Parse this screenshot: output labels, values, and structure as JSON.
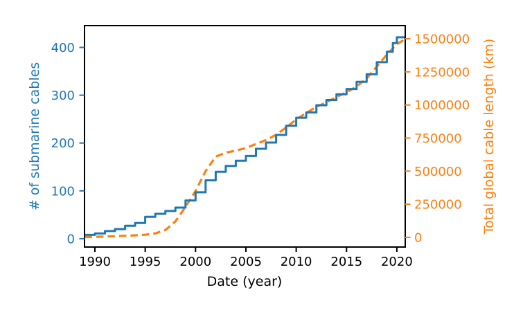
{
  "chart_data": {
    "type": "line",
    "title": "",
    "xlabel": "Date (year)",
    "grid": false,
    "legend": false,
    "background_color": "#ffffff",
    "spine_color": "#000000",
    "x_ticks": [
      1990,
      1995,
      2000,
      2005,
      2010,
      2015,
      2020
    ],
    "x_tick_color": "#000000",
    "xlim": [
      1988.97,
      2020.83
    ],
    "left_axis": {
      "label": "# of submarine cables",
      "color": "#1f77b4",
      "ticks": [
        0,
        100,
        200,
        300,
        400
      ],
      "lim": [
        -17.4,
        445.5
      ]
    },
    "right_axis": {
      "label": "Total global cable length (km)",
      "color": "#ff7f0e",
      "ticks": [
        0,
        250000,
        500000,
        750000,
        1000000,
        1250000,
        1500000
      ],
      "lim": [
        -73200,
        1599400
      ]
    },
    "series": [
      {
        "name": "# of submarine cables",
        "axis": "left",
        "style": "step-post",
        "line_dash": "solid",
        "color": "#1f77b4",
        "points": [
          [
            1989,
            8
          ],
          [
            1990,
            11
          ],
          [
            1991,
            16
          ],
          [
            1992,
            20
          ],
          [
            1993,
            27
          ],
          [
            1994,
            33
          ],
          [
            1995,
            46
          ],
          [
            1996,
            52
          ],
          [
            1997,
            58
          ],
          [
            1998,
            65
          ],
          [
            1999,
            80
          ],
          [
            2000,
            97
          ],
          [
            2001,
            122
          ],
          [
            2002,
            140
          ],
          [
            2003,
            152
          ],
          [
            2004,
            163
          ],
          [
            2005,
            173
          ],
          [
            2006,
            188
          ],
          [
            2007,
            201
          ],
          [
            2008,
            217
          ],
          [
            2009,
            236
          ],
          [
            2010,
            253
          ],
          [
            2011,
            264
          ],
          [
            2012,
            279
          ],
          [
            2013,
            290
          ],
          [
            2014,
            302
          ],
          [
            2015,
            313
          ],
          [
            2016,
            328
          ],
          [
            2017,
            344
          ],
          [
            2018,
            369
          ],
          [
            2019,
            391
          ],
          [
            2019.6,
            409
          ],
          [
            2020,
            421
          ],
          [
            2021,
            421
          ]
        ]
      },
      {
        "name": "Total global cable length (km)",
        "axis": "right",
        "style": "line",
        "line_dash": "dashed",
        "color": "#ff7f0e",
        "points": [
          [
            1989,
            2000
          ],
          [
            1990,
            4000
          ],
          [
            1991,
            6000
          ],
          [
            1992,
            9000
          ],
          [
            1993,
            12000
          ],
          [
            1994,
            15000
          ],
          [
            1995,
            20000
          ],
          [
            1996,
            30000
          ],
          [
            1997,
            55000
          ],
          [
            1998,
            120000
          ],
          [
            1999,
            230000
          ],
          [
            2000,
            350000
          ],
          [
            2001,
            500000
          ],
          [
            2002,
            610000
          ],
          [
            2003,
            640000
          ],
          [
            2004,
            655000
          ],
          [
            2005,
            675000
          ],
          [
            2006,
            705000
          ],
          [
            2007,
            735000
          ],
          [
            2008,
            775000
          ],
          [
            2009,
            830000
          ],
          [
            2010,
            890000
          ],
          [
            2011,
            940000
          ],
          [
            2012,
            985000
          ],
          [
            2013,
            1020000
          ],
          [
            2014,
            1060000
          ],
          [
            2015,
            1095000
          ],
          [
            2016,
            1140000
          ],
          [
            2017,
            1200000
          ],
          [
            2018,
            1290000
          ],
          [
            2019,
            1380000
          ],
          [
            2020,
            1460000
          ],
          [
            2021,
            1505000
          ]
        ]
      }
    ]
  }
}
